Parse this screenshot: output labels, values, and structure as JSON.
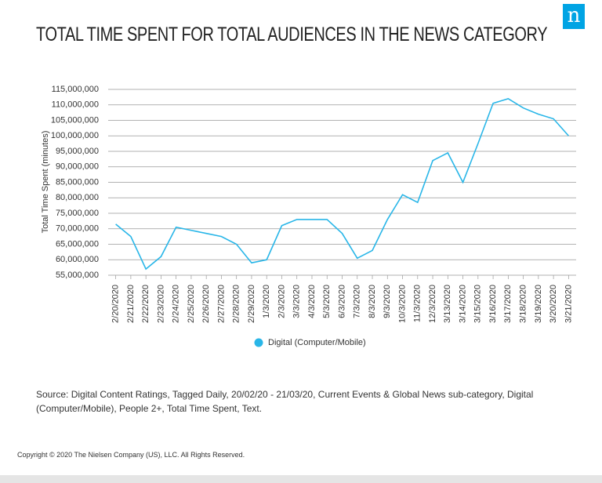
{
  "chart_data": {
    "type": "line",
    "title": "TOTAL TIME SPENT FOR TOTAL AUDIENCES IN THE NEWS CATEGORY",
    "y_label": "Total Time Spent (minutes)",
    "categories": [
      "2/20/2020",
      "2/21/2020",
      "2/22/2020",
      "2/23/2020",
      "2/24/2020",
      "2/25/2020",
      "2/26/2020",
      "2/27/2020",
      "2/28/2020",
      "2/29/2020",
      "1/3/2020",
      "2/3/2020",
      "3/3/2020",
      "4/3/2020",
      "5/3/2020",
      "6/3/2020",
      "7/3/2020",
      "8/3/2020",
      "9/3/2020",
      "10/3/2020",
      "11/3/2020",
      "12/3/2020",
      "3/13/2020",
      "3/14/2020",
      "3/15/2020",
      "3/16/2020",
      "3/17/2020",
      "3/18/2020",
      "3/19/2020",
      "3/20/2020",
      "3/21/2020"
    ],
    "series": [
      {
        "name": "Digital (Computer/Mobile)",
        "color": "#29b6e8",
        "values": [
          71500000,
          67500000,
          57000000,
          61000000,
          70500000,
          69500000,
          68500000,
          67500000,
          65000000,
          59000000,
          60000000,
          71000000,
          73000000,
          73000000,
          73000000,
          68500000,
          60500000,
          63000000,
          73000000,
          81000000,
          78500000,
          92000000,
          94500000,
          85000000,
          97500000,
          110500000,
          112000000,
          109000000,
          107000000,
          105500000,
          100000000
        ]
      }
    ],
    "ylim": [
      55000000,
      115000000
    ],
    "yticks": [
      {
        "value": 55000000,
        "label": "55,000,000"
      },
      {
        "value": 60000000,
        "label": "60,000,000"
      },
      {
        "value": 65000000,
        "label": "65,000,000"
      },
      {
        "value": 70000000,
        "label": "70,000,000"
      },
      {
        "value": 75000000,
        "label": "75,000,000"
      },
      {
        "value": 80000000,
        "label": "80,000,000"
      },
      {
        "value": 85000000,
        "label": "85,000,000"
      },
      {
        "value": 90000000,
        "label": "90,000,000"
      },
      {
        "value": 95000000,
        "label": "95,000,000"
      },
      {
        "value": 100000000,
        "label": "100,000,000"
      },
      {
        "value": 105000000,
        "label": "105,000,000"
      },
      {
        "value": 110000000,
        "label": "110,000,000"
      },
      {
        "value": 115000000,
        "label": "115,000,000"
      }
    ],
    "grid": true,
    "legend": "bottom"
  },
  "logo": "n",
  "source": "Source: Digital Content Ratings, Tagged Daily, 20/02/20 - 21/03/20, Current Events & Global News sub-category, Digital (Computer/Mobile), People 2+, Total Time Spent, Text.",
  "copyright": "Copyright © 2020 The Nielsen Company (US), LLC. All Rights Reserved."
}
